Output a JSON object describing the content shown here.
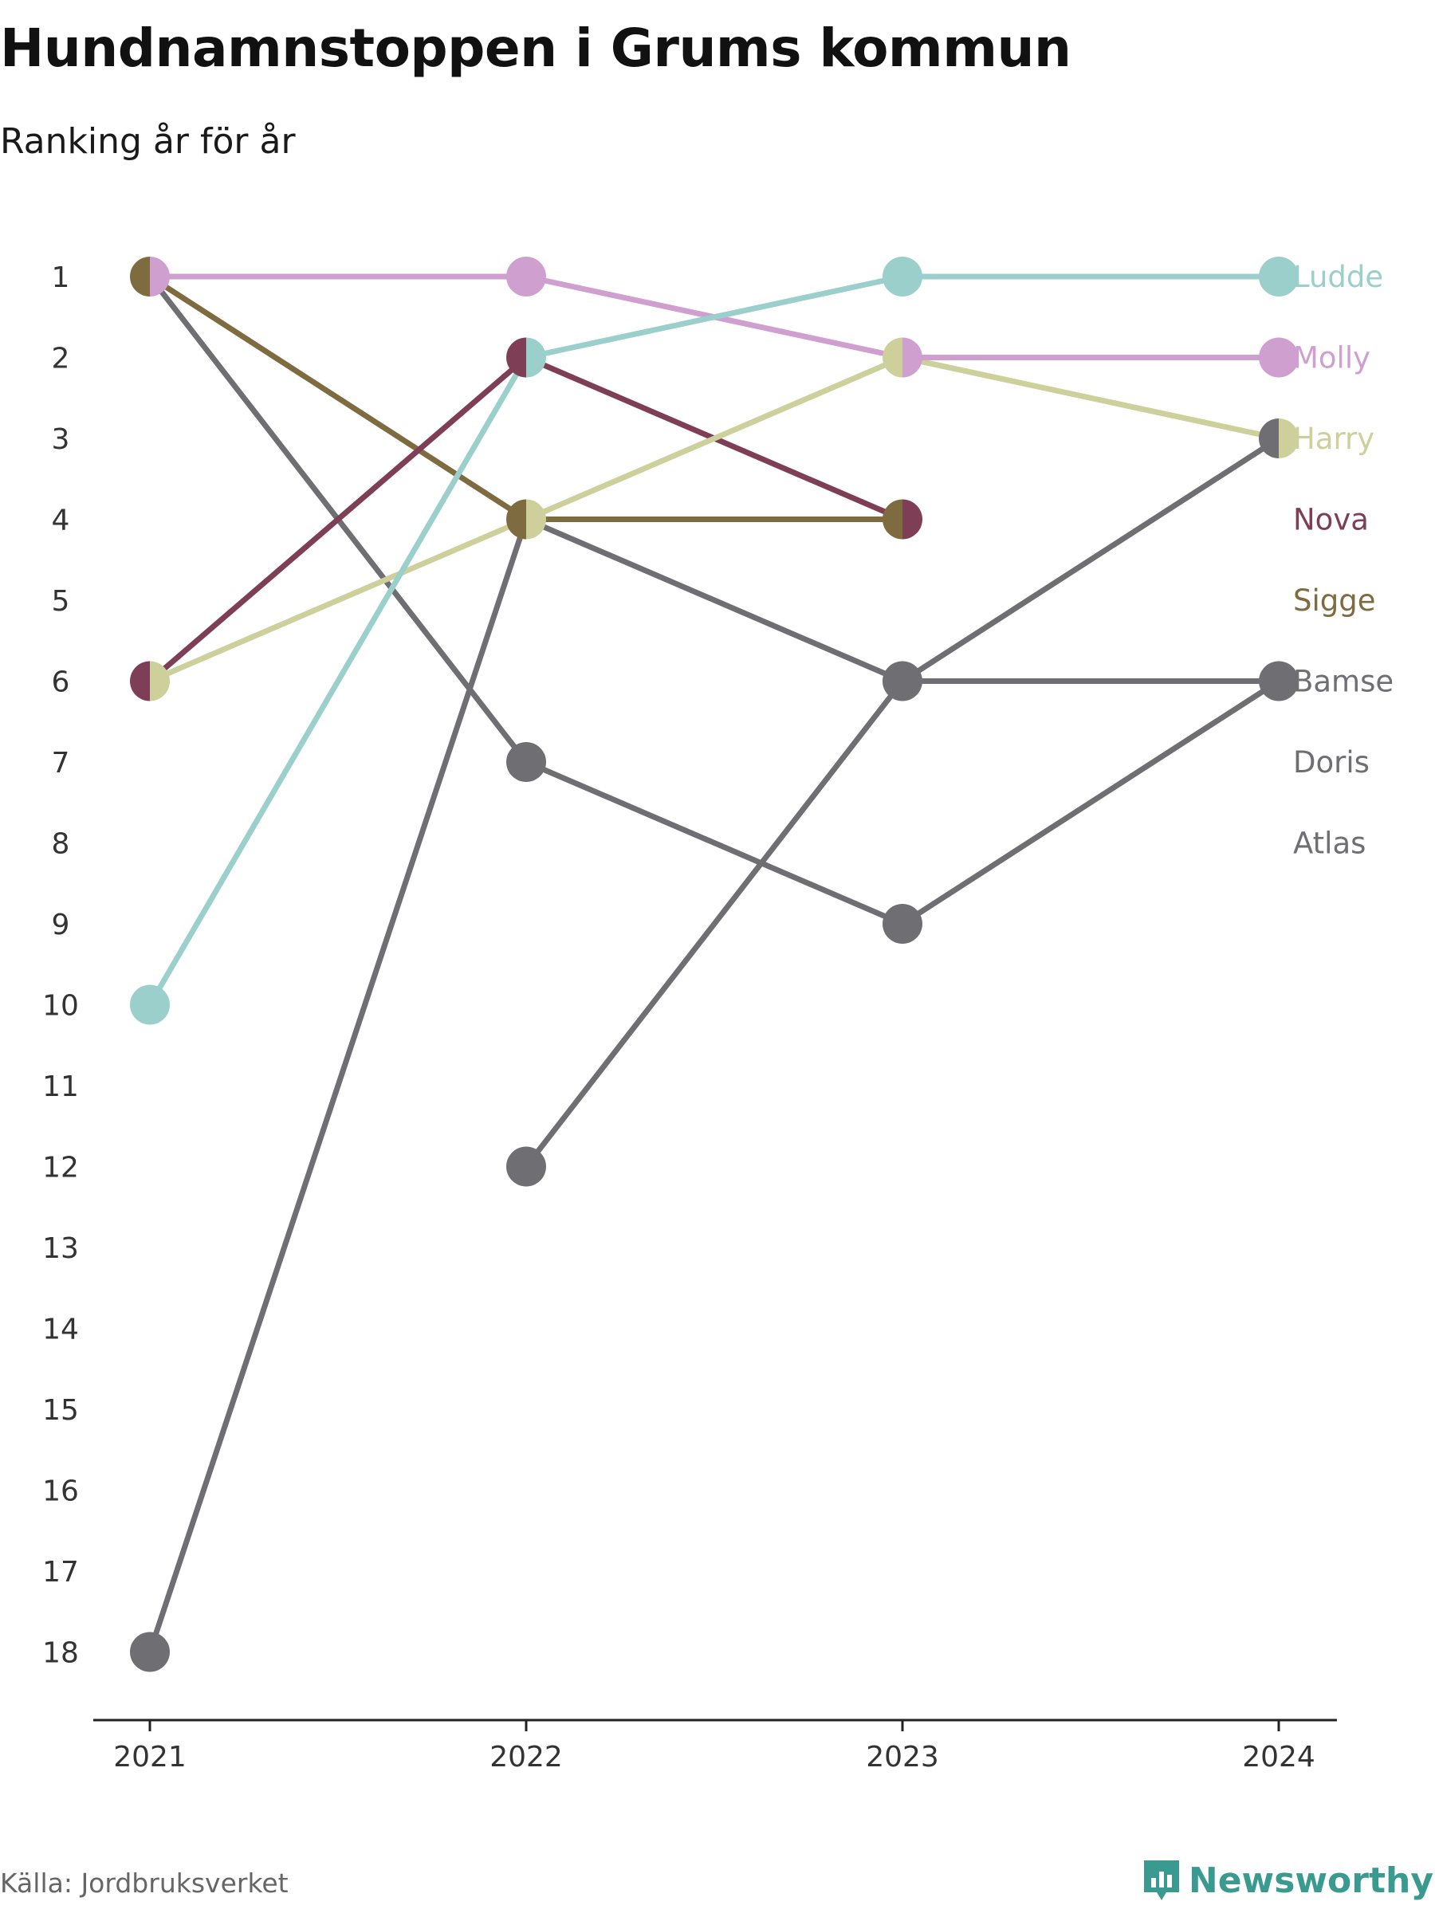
{
  "title": "Hundnamnstoppen i Grums kommun",
  "subtitle": "Ranking år för år",
  "source": "Källa: Jordbruksverket",
  "brand": "Newsworthy",
  "chart_data": {
    "type": "line",
    "x": [
      "2021",
      "2022",
      "2023",
      "2024"
    ],
    "ylim": [
      1,
      18
    ],
    "y_inverted": true,
    "y_ticks": [
      1,
      2,
      3,
      4,
      5,
      6,
      7,
      8,
      9,
      10,
      11,
      12,
      13,
      14,
      15,
      16,
      17,
      18
    ],
    "series": [
      {
        "name": "Ludde",
        "color": "#9acfcb",
        "values": [
          10,
          2,
          1,
          1
        ]
      },
      {
        "name": "Molly",
        "color": "#cf9fd0",
        "values": [
          1,
          1,
          2,
          2
        ]
      },
      {
        "name": "Harry",
        "color": "#cdd09b",
        "values": [
          6,
          4,
          2,
          3
        ]
      },
      {
        "name": "Nova",
        "color": "#7e3e55",
        "values": [
          6,
          2,
          4,
          null
        ]
      },
      {
        "name": "Sigge",
        "color": "#7e6b40",
        "values": [
          1,
          4,
          4,
          null
        ]
      },
      {
        "name": "Bamse",
        "color": "#6e6e73",
        "values": [
          null,
          12,
          6,
          3
        ]
      },
      {
        "name": "Doris",
        "color": "#6e6e73",
        "values": [
          1,
          7,
          9,
          6
        ]
      },
      {
        "name": "Atlas",
        "color": "#6e6e73",
        "values": [
          18,
          4,
          6,
          6
        ]
      }
    ]
  },
  "colors": {
    "axis": "#222222",
    "tick_text": "#333333",
    "brand": "#3a9a90"
  }
}
